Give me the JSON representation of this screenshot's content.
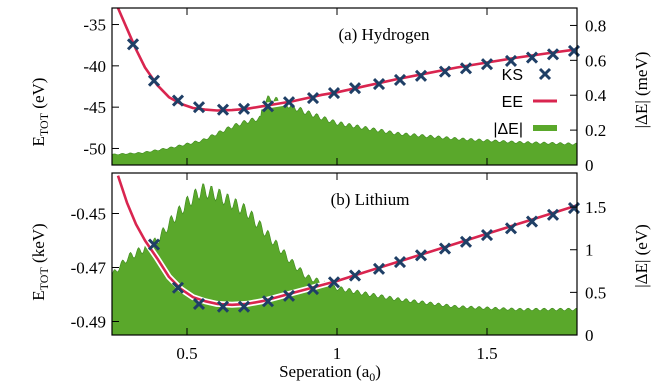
{
  "chart_data": [
    {
      "type": "line",
      "title": "(a) Hydrogen",
      "ylabel_main": "E",
      "ylabel_sub": "TOT",
      "ylabel_unit": " (eV)",
      "y2label_pre": "|",
      "y2label_delta": "ΔE",
      "y2label_post": "| (meV)",
      "xlim": [
        0.25,
        1.8
      ],
      "ylim": [
        -52,
        -33
      ],
      "y2lim": [
        0,
        0.9
      ],
      "yticks": [
        -35,
        -40,
        -45,
        -50
      ],
      "y2ticks": [
        0,
        0.2,
        0.4,
        0.6,
        0.8
      ],
      "ytick_labels": [
        "-35",
        "-40",
        "-45",
        "-50"
      ],
      "y2tick_labels": [
        "0",
        "0.2",
        "0.4",
        "0.6",
        "0.8"
      ],
      "legend": [
        "KS",
        "EE",
        "|ΔE|"
      ],
      "ks": {
        "x": [
          0.32,
          0.39,
          0.47,
          0.54,
          0.62,
          0.69,
          0.77,
          0.84,
          0.92,
          0.99,
          1.06,
          1.14,
          1.21,
          1.28,
          1.36,
          1.43,
          1.5,
          1.58,
          1.65,
          1.72,
          1.79
        ],
        "y": [
          -37.4,
          -41.8,
          -44.2,
          -45.0,
          -45.3,
          -45.2,
          -44.9,
          -44.4,
          -43.9,
          -43.3,
          -42.7,
          -42.2,
          -41.7,
          -41.2,
          -40.7,
          -40.3,
          -39.8,
          -39.4,
          -39.0,
          -38.6,
          -38.2
        ]
      },
      "ee": {
        "x": [
          0.27,
          0.3,
          0.33,
          0.36,
          0.4,
          0.44,
          0.48,
          0.52,
          0.56,
          0.6,
          0.65,
          0.7,
          0.75,
          0.8,
          0.85,
          0.9,
          0.95,
          1.0,
          1.1,
          1.2,
          1.3,
          1.4,
          1.5,
          1.6,
          1.7,
          1.8
        ],
        "y": [
          -33.0,
          -35.5,
          -38.0,
          -40.2,
          -42.3,
          -43.8,
          -44.6,
          -45.1,
          -45.3,
          -45.4,
          -45.35,
          -45.2,
          -44.9,
          -44.6,
          -44.3,
          -43.9,
          -43.5,
          -43.2,
          -42.4,
          -41.6,
          -40.9,
          -40.2,
          -39.6,
          -39.0,
          -38.5,
          -38.0
        ]
      },
      "delta": {
        "x": [
          0.25,
          0.35,
          0.45,
          0.55,
          0.6,
          0.65,
          0.7,
          0.749,
          0.75,
          0.77,
          0.8,
          0.9,
          1.0,
          1.2,
          1.4,
          1.6,
          1.8
        ],
        "y": [
          0.06,
          0.07,
          0.1,
          0.14,
          0.18,
          0.22,
          0.25,
          0.27,
          0.34,
          0.38,
          0.37,
          0.3,
          0.24,
          0.18,
          0.15,
          0.13,
          0.12
        ]
      }
    },
    {
      "type": "line",
      "title": "(b) Lithium",
      "ylabel_main": "E",
      "ylabel_sub": "TOT",
      "ylabel_unit": " (keV)",
      "y2label_pre": "|",
      "y2label_delta": "ΔE",
      "y2label_post": "| (eV)",
      "xlabel_main": "Seperation (a",
      "xlabel_sub": "0",
      "xlabel_post": ")",
      "xlim": [
        0.25,
        1.8
      ],
      "ylim": [
        -0.495,
        -0.435
      ],
      "y2lim": [
        0,
        1.9
      ],
      "yticks": [
        -0.45,
        -0.47,
        -0.49
      ],
      "y2ticks": [
        0,
        0.5,
        1,
        1.5
      ],
      "ytick_labels": [
        "-0.45",
        "-0.47",
        "-0.49"
      ],
      "y2tick_labels": [
        "0",
        "0.5",
        "1",
        "1.5"
      ],
      "xticks": [
        0.5,
        1,
        1.5
      ],
      "xtick_labels": [
        "0.5",
        "1",
        "1.5"
      ],
      "ks": {
        "x": [
          0.39,
          0.47,
          0.54,
          0.62,
          0.69,
          0.77,
          0.84,
          0.92,
          0.99,
          1.06,
          1.14,
          1.21,
          1.28,
          1.36,
          1.43,
          1.5,
          1.58,
          1.65,
          1.72,
          1.79
        ],
        "y": [
          -0.4615,
          -0.4775,
          -0.4835,
          -0.4845,
          -0.4845,
          -0.4825,
          -0.4805,
          -0.478,
          -0.4755,
          -0.473,
          -0.4705,
          -0.468,
          -0.4655,
          -0.463,
          -0.4605,
          -0.458,
          -0.4555,
          -0.453,
          -0.4505,
          -0.448
        ]
      },
      "ee": {
        "x": [
          0.27,
          0.3,
          0.33,
          0.36,
          0.4,
          0.44,
          0.48,
          0.52,
          0.56,
          0.6,
          0.65,
          0.7,
          0.75,
          0.8,
          0.85,
          0.9,
          0.95,
          1.0,
          1.1,
          1.2,
          1.3,
          1.4,
          1.5,
          1.6,
          1.7,
          1.8
        ],
        "y": [
          -0.436,
          -0.446,
          -0.454,
          -0.46,
          -0.4665,
          -0.4735,
          -0.478,
          -0.481,
          -0.4825,
          -0.4835,
          -0.4838,
          -0.4835,
          -0.4825,
          -0.481,
          -0.4795,
          -0.478,
          -0.4765,
          -0.475,
          -0.4715,
          -0.468,
          -0.4645,
          -0.461,
          -0.4575,
          -0.454,
          -0.4505,
          -0.447
        ]
      },
      "delta": {
        "x": [
          0.25,
          0.3,
          0.35,
          0.4,
          0.45,
          0.5,
          0.55,
          0.6,
          0.65,
          0.7,
          0.75,
          0.8,
          0.85,
          0.9,
          1.0,
          1.1,
          1.2,
          1.4,
          1.6,
          1.8
        ],
        "y": [
          0.7,
          0.9,
          1.0,
          1.1,
          1.35,
          1.55,
          1.7,
          1.65,
          1.55,
          1.45,
          1.25,
          1.05,
          0.85,
          0.68,
          0.55,
          0.48,
          0.42,
          0.33,
          0.3,
          0.3
        ]
      }
    }
  ],
  "colors": {
    "ks": "#1f3f66",
    "ee": "#d9254f",
    "ee_halo": "#ffffff",
    "delta": "#5aa82b",
    "delta_stroke": "#3f8a1f"
  }
}
